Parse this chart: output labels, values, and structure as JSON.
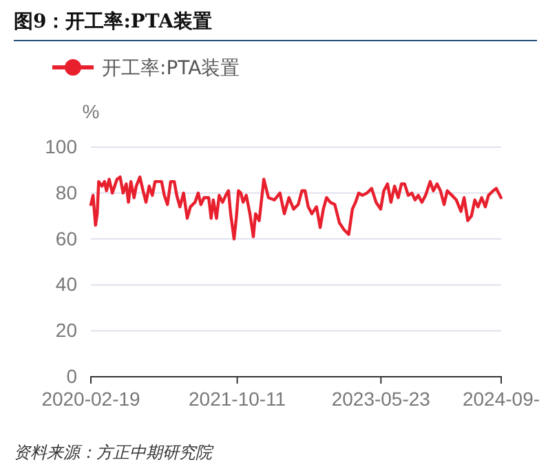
{
  "chart_data": {
    "type": "line",
    "title": "图9：开工率:PTA装置",
    "ylabel": "%",
    "annotations": [
      "资料来源：方正中期研究院"
    ],
    "legend": "top left",
    "grid": "y",
    "xlim": [
      "2020-02-19",
      "2024-09-27"
    ],
    "xticks": [
      "2020-02-19",
      "2021-10-11",
      "2023-05-23",
      {
        "value": "2024-09-27",
        "label": "2024-09-"
      }
    ],
    "ylim": [
      0,
      100
    ],
    "yticks": [
      0,
      20,
      40,
      60,
      80,
      100
    ],
    "series": [
      {
        "name": "开工率:PTA装置",
        "color": "#e8202e",
        "x": [
          "2020-02-19",
          "2020-02-28",
          "2020-03-09",
          "2020-03-16",
          "2020-03-22",
          "2020-04-04",
          "2020-04-15",
          "2020-04-23",
          "2020-05-04",
          "2020-05-17",
          "2020-06-05",
          "2020-06-18",
          "2020-06-30",
          "2020-07-13",
          "2020-07-22",
          "2020-08-01",
          "2020-08-14",
          "2020-08-23",
          "2020-09-07",
          "2020-09-20",
          "2020-10-02",
          "2020-10-15",
          "2020-10-28",
          "2020-11-08",
          "2020-11-21",
          "2020-12-05",
          "2020-12-16",
          "2020-12-29",
          "2021-01-11",
          "2021-01-26",
          "2021-02-05",
          "2021-02-18",
          "2021-03-05",
          "2021-03-20",
          "2021-04-02",
          "2021-04-21",
          "2021-05-04",
          "2021-05-15",
          "2021-05-28",
          "2021-06-16",
          "2021-06-26",
          "2021-07-05",
          "2021-07-18",
          "2021-07-29",
          "2021-08-12",
          "2021-08-25",
          "2021-09-05",
          "2021-09-14",
          "2021-09-28",
          "2021-10-07",
          "2021-10-16",
          "2021-10-26",
          "2021-11-04",
          "2021-11-17",
          "2021-12-02",
          "2021-12-16",
          "2021-12-25",
          "2022-01-09",
          "2022-01-28",
          "2022-02-16",
          "2022-03-12",
          "2022-04-04",
          "2022-04-22",
          "2022-05-11",
          "2022-05-30",
          "2022-06-18",
          "2022-07-03",
          "2022-07-16",
          "2022-07-29",
          "2022-08-13",
          "2022-09-01",
          "2022-09-16",
          "2022-09-29",
          "2022-10-12",
          "2022-10-27",
          "2022-11-15",
          "2022-12-04",
          "2022-12-23",
          "2023-01-11",
          "2023-01-26",
          "2023-02-08",
          "2023-02-21",
          "2023-03-08",
          "2023-03-27",
          "2023-04-15",
          "2023-05-03",
          "2023-05-22",
          "2023-06-04",
          "2023-06-19",
          "2023-07-03",
          "2023-07-18",
          "2023-08-02",
          "2023-08-15",
          "2023-08-28",
          "2023-09-12",
          "2023-09-27",
          "2023-10-10",
          "2023-10-23",
          "2023-11-07",
          "2023-11-22",
          "2023-12-11",
          "2023-12-24",
          "2024-01-08",
          "2024-01-22",
          "2024-02-06",
          "2024-02-19",
          "2024-03-09",
          "2024-03-27",
          "2024-04-15",
          "2024-04-28",
          "2024-05-13",
          "2024-05-28",
          "2024-06-11",
          "2024-06-24",
          "2024-07-09",
          "2024-07-24",
          "2024-08-06",
          "2024-08-25",
          "2024-09-07",
          "2024-09-26"
        ],
        "values": [
          75,
          79,
          66,
          71,
          85,
          83,
          85,
          81,
          86,
          80,
          86,
          87,
          80,
          84,
          76,
          85,
          78,
          83,
          87,
          81,
          76,
          83,
          79,
          85,
          85,
          85,
          79,
          75,
          85,
          85,
          79,
          74,
          80,
          69,
          74,
          76,
          80,
          75,
          78,
          78,
          69,
          77,
          69,
          79,
          76,
          79,
          81,
          71,
          60,
          69,
          81,
          80,
          76,
          79,
          71,
          61,
          71,
          68,
          86,
          78,
          77,
          80,
          71,
          78,
          73,
          75,
          81,
          81,
          74,
          71,
          74,
          65,
          73,
          78,
          76,
          75,
          67,
          64,
          62,
          73,
          76,
          80,
          79,
          80,
          82,
          76,
          73,
          81,
          84,
          76,
          83,
          78,
          84,
          84,
          79,
          80,
          77,
          79,
          76,
          79,
          85,
          81,
          84,
          81,
          75,
          81,
          79,
          77,
          72,
          78,
          68,
          70,
          77,
          74,
          78,
          74,
          79,
          81,
          82,
          78
        ]
      }
    ]
  }
}
